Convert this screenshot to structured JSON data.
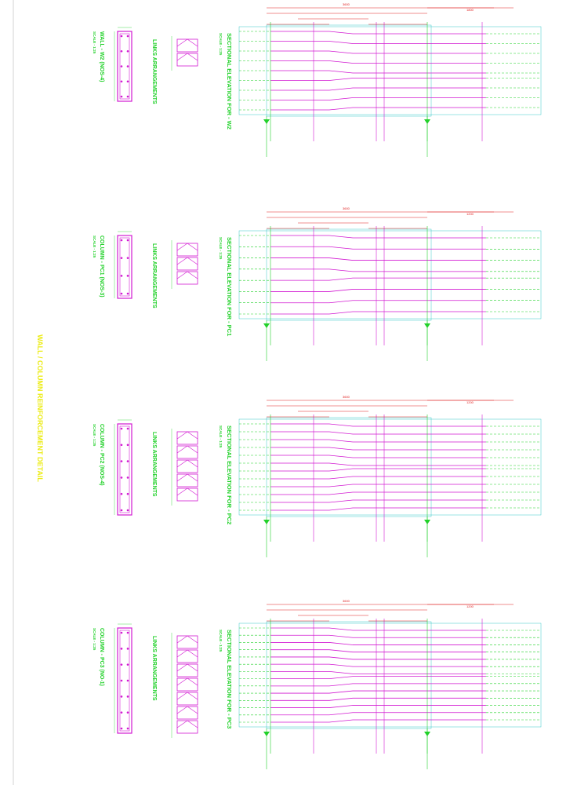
{
  "main_title": "WALL / COLUMN REINFORCEMENT DETAIL",
  "colors": {
    "green": "#22d12a",
    "magenta": "#d21ad2",
    "cyan": "#39c8c8",
    "red": "#e02020",
    "yellow": "#ecec14"
  },
  "panels": [
    {
      "elevation_title": "SECTIONAL ELEVATION FOR - W2",
      "elevation_scale": "SCALE - 1:25",
      "links_title": "LINKS ARRANGEMENTS",
      "section_title": "WALL - W2  (NOS-4)",
      "section_scale": "SCALE - 1:25",
      "dims_top": [
        "3600",
        "1800"
      ],
      "bar_count": 9,
      "link_boxes": 2
    },
    {
      "elevation_title": "SECTIONAL ELEVATION FOR - PC1",
      "elevation_scale": "SCALE - 1:25",
      "links_title": "LINKS ARRANGEMENTS",
      "section_title": "COLUMN - PC1  (NOS-3)",
      "section_scale": "SCALE - 1:25",
      "dims_top": [
        "3600",
        "1200"
      ],
      "bar_count": 8,
      "link_boxes": 3
    },
    {
      "elevation_title": "SECTIONAL ELEVATION FOR - PC2",
      "elevation_scale": "SCALE - 1:25",
      "links_title": "LINKS ARRANGEMENTS",
      "section_title": "COLUMN - PC2  (NOS-4)",
      "section_scale": "SCALE - 1:25",
      "dims_top": [
        "3600",
        "1200"
      ],
      "bar_count": 12,
      "link_boxes": 5
    },
    {
      "elevation_title": "SECTIONAL ELEVATION FOR - PC3",
      "elevation_scale": "SCALE - 1:25",
      "links_title": "LINKS ARRANGEMENTS",
      "section_title": "COLUMN - PC3  (NO-1)",
      "section_scale": "SCALE - 1:25",
      "dims_top": [
        "3600",
        "1200"
      ],
      "bar_count": 14,
      "link_boxes": 7
    }
  ]
}
